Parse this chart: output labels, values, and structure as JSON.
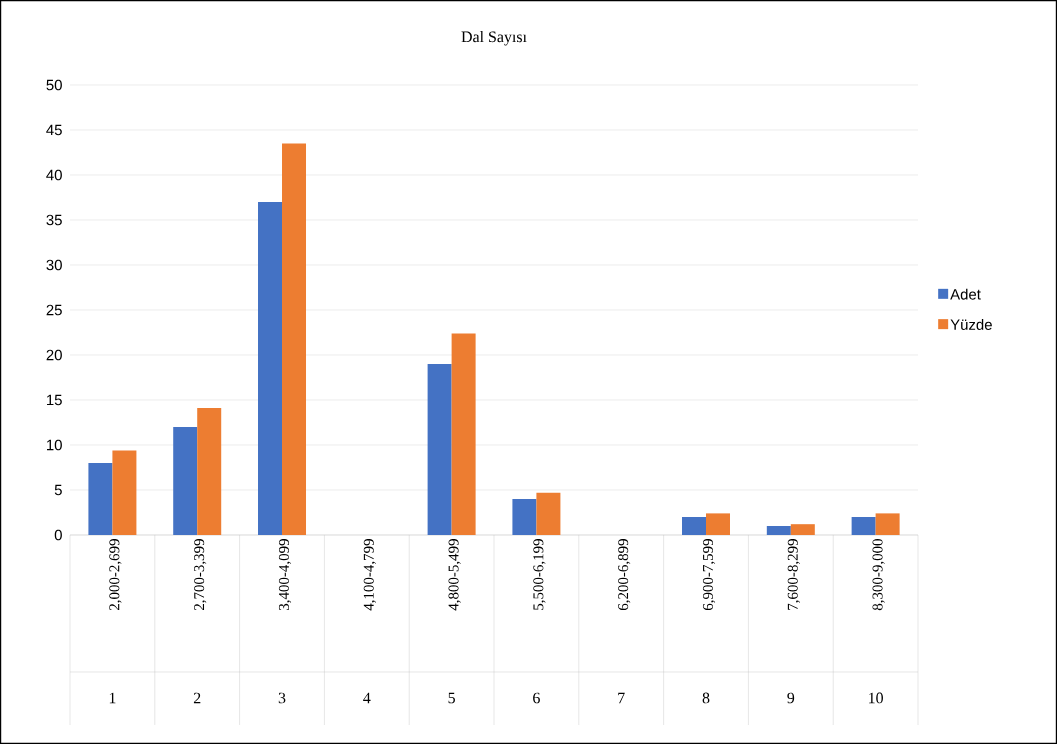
{
  "chart_data": {
    "type": "bar",
    "title": "Dal Sayısı",
    "categories": [
      "2,000-2,699",
      "2,700-3,399",
      "3,400-4,099",
      "4,100-4,799",
      "4,800-5,499",
      "5,500-6,199",
      "6,200-6,899",
      "6,900-7,599",
      "7,600-8,299",
      "8,300-9,000"
    ],
    "series": [
      {
        "name": "Adet",
        "color": "#4472c4",
        "values": [
          8,
          12,
          37,
          0,
          19,
          4,
          0,
          2,
          1,
          2
        ]
      },
      {
        "name": "Yüzde",
        "color": "#ed7d31",
        "values": [
          9.4,
          14.1,
          43.5,
          0,
          22.4,
          4.7,
          0,
          2.4,
          1.2,
          2.4
        ]
      }
    ],
    "annotations": [
      "1",
      "2",
      "3",
      "4",
      "5",
      "6",
      "7",
      "8",
      "9",
      "10"
    ],
    "ylim": [
      0,
      50
    ],
    "yticks": [
      0,
      5,
      10,
      15,
      20,
      25,
      30,
      35,
      40,
      45,
      50
    ],
    "grid": "y",
    "legend": "right"
  }
}
